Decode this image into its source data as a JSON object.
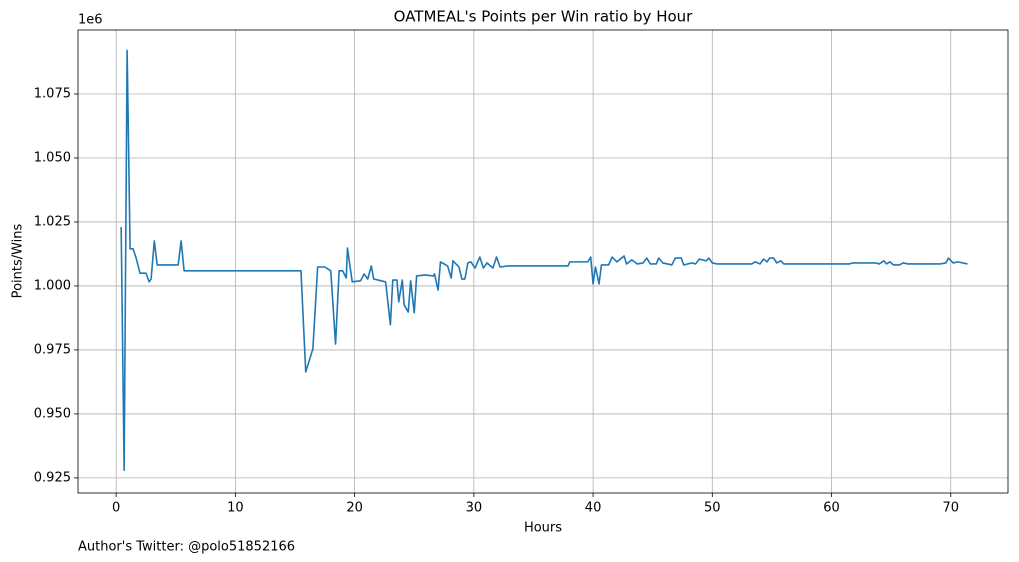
{
  "chart_data": {
    "type": "line",
    "title": "OATMEAL's Points per Win ratio by Hour",
    "xlabel": "Hours",
    "ylabel": "Points/Wins",
    "y_offset_label": "1e6",
    "grid": true,
    "xlim": [
      -3.2,
      74.8
    ],
    "ylim": [
      0.9191,
      1.1
    ],
    "xticks": [
      0,
      10,
      20,
      30,
      40,
      50,
      60,
      70
    ],
    "yticks": [
      0.925,
      {
        "value": 0.95,
        "label": "0.950"
      },
      0.975,
      {
        "value": 1,
        "label": "1.000"
      },
      1.025,
      {
        "value": 1.05,
        "label": "1.050"
      },
      1.075
    ],
    "series": [
      {
        "color": "#1f77b4",
        "x": [
          0.42,
          0.67,
          0.92,
          1.17,
          1.42,
          1.67,
          2.0,
          2.5,
          2.77,
          2.93,
          3.2,
          3.44,
          5.2,
          5.45,
          5.7,
          15.5,
          15.9,
          16.5,
          16.9,
          17.5,
          18.0,
          18.4,
          18.7,
          19.0,
          19.3,
          19.4,
          19.8,
          20.5,
          20.8,
          21.1,
          21.4,
          21.6,
          22.6,
          23.0,
          23.2,
          23.55,
          23.7,
          24.0,
          24.15,
          24.5,
          24.7,
          25.0,
          25.2,
          25.9,
          26.6,
          26.7,
          27.0,
          27.2,
          27.8,
          28.1,
          28.25,
          28.75,
          29.0,
          29.25,
          29.5,
          29.75,
          30.1,
          30.5,
          30.8,
          31.1,
          31.6,
          31.9,
          32.2,
          32.85,
          37.9,
          38.05,
          39.55,
          39.8,
          40.0,
          40.2,
          40.5,
          40.7,
          41.3,
          41.6,
          42.0,
          42.6,
          42.8,
          43.25,
          43.7,
          44.2,
          44.5,
          44.8,
          45.3,
          45.5,
          45.85,
          46.6,
          46.9,
          47.4,
          47.6,
          48.3,
          48.6,
          48.9,
          49.5,
          49.7,
          50.0,
          50.4,
          53.3,
          53.6,
          54.0,
          54.3,
          54.6,
          54.8,
          55.15,
          55.4,
          55.75,
          56.0,
          61.5,
          61.8,
          63.7,
          64.0,
          64.4,
          64.6,
          64.9,
          65.2,
          65.7,
          66.0,
          66.4,
          69.1,
          69.6,
          69.8,
          70.2,
          70.6,
          71.4
        ],
        "values": [
          1.023,
          0.928,
          1.092,
          1.0145,
          1.0145,
          1.011,
          1.005,
          1.005,
          1.0016,
          1.0027,
          1.0176,
          1.0082,
          1.0082,
          1.0176,
          1.0059,
          1.0059,
          0.9664,
          0.9754,
          1.0074,
          1.0074,
          1.0059,
          0.9773,
          1.0059,
          1.0059,
          1.0031,
          1.0148,
          1.0016,
          1.002,
          1.0047,
          1.0027,
          1.0078,
          1.0027,
          1.0016,
          0.9848,
          1.0023,
          1.0023,
          0.9938,
          1.0023,
          0.9926,
          0.9898,
          1.002,
          0.9895,
          1.0039,
          1.0043,
          1.0039,
          1.0047,
          0.9984,
          1.0094,
          1.0078,
          1.0031,
          1.0098,
          1.0074,
          1.0027,
          1.0027,
          1.009,
          1.0094,
          1.007,
          1.0113,
          1.007,
          1.009,
          1.007,
          1.0113,
          1.0074,
          1.0078,
          1.0078,
          1.0094,
          1.0094,
          1.0113,
          1.0008,
          1.0074,
          1.0008,
          1.0082,
          1.0082,
          1.0113,
          1.0094,
          1.0117,
          1.0086,
          1.0102,
          1.0086,
          1.009,
          1.0109,
          1.0086,
          1.0086,
          1.0109,
          1.009,
          1.0082,
          1.0109,
          1.0109,
          1.0082,
          1.009,
          1.0086,
          1.0105,
          1.0098,
          1.0109,
          1.009,
          1.0086,
          1.0086,
          1.0094,
          1.0086,
          1.0105,
          1.0094,
          1.0109,
          1.0109,
          1.009,
          1.0098,
          1.0086,
          1.0086,
          1.009,
          1.009,
          1.0086,
          1.0098,
          1.0086,
          1.0094,
          1.0082,
          1.0082,
          1.009,
          1.0086,
          1.0086,
          1.009,
          1.0109,
          1.009,
          1.0094,
          1.0086
        ]
      }
    ]
  },
  "footer": "Author's Twitter: @polo51852166"
}
